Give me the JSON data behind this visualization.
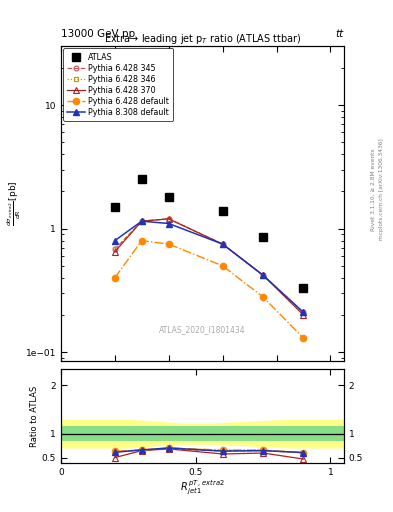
{
  "title_top": "13000 GeV pp",
  "title_right": "tt",
  "plot_title": "Extra→ leading jet p$_T$ ratio (ATLAS ttbar)",
  "watermark": "ATLAS_2020_I1801434",
  "ylabel_main": "d$\\frac{d\\sigma_{extra2}}{dR}$ [pb]",
  "ylabel_ratio": "Ratio to ATLAS",
  "right_label1": "Rivet 3.1.10, ≥ 2.8M events",
  "right_label2": "mcplots.cern.ch [arXiv:1306.3436]",
  "xlim": [
    0,
    1.05
  ],
  "ylim_main": [
    0.085,
    30
  ],
  "ylim_ratio": [
    0.38,
    2.35
  ],
  "x_data": [
    0.2,
    0.3,
    0.4,
    0.6,
    0.75,
    0.9
  ],
  "atlas_y": [
    1.5,
    2.5,
    1.8,
    1.4,
    0.85,
    0.33
  ],
  "py6_345_y": [
    0.68,
    1.15,
    1.2,
    0.75,
    0.42,
    0.21
  ],
  "py6_346_y": [
    0.68,
    1.15,
    1.2,
    0.75,
    0.42,
    0.21
  ],
  "py6_370_y": [
    0.65,
    1.15,
    1.2,
    0.75,
    0.42,
    0.2
  ],
  "py6_def_y": [
    0.4,
    0.8,
    0.75,
    0.5,
    0.28,
    0.13
  ],
  "py8_def_y": [
    0.8,
    1.15,
    1.1,
    0.75,
    0.42,
    0.21
  ],
  "ratio_py6_345": [
    0.63,
    0.655,
    0.685,
    0.635,
    0.645,
    0.6
  ],
  "ratio_py6_346": [
    0.63,
    0.655,
    0.7,
    0.655,
    0.655,
    0.6
  ],
  "ratio_py6_370": [
    0.5,
    0.645,
    0.68,
    0.575,
    0.595,
    0.47
  ],
  "ratio_py6_def": [
    0.63,
    0.655,
    0.7,
    0.655,
    0.655,
    0.6
  ],
  "ratio_py8_def": [
    0.61,
    0.66,
    0.7,
    0.635,
    0.645,
    0.605
  ],
  "band_x": [
    0.0,
    0.25,
    0.35,
    0.45,
    0.55,
    0.7,
    0.85,
    1.05
  ],
  "band_yellow_lo": [
    0.7,
    0.7,
    0.74,
    0.78,
    0.78,
    0.74,
    0.7,
    0.7
  ],
  "band_yellow_hi": [
    1.3,
    1.3,
    1.26,
    1.22,
    1.22,
    1.26,
    1.3,
    1.3
  ],
  "band_green_lo": 0.85,
  "band_green_hi": 1.15,
  "color_py6_345": "#cc5555",
  "color_py6_346": "#bb9900",
  "color_py6_370": "#aa2222",
  "color_py6_def": "#ff8800",
  "color_py8_def": "#2233bb",
  "color_atlas": "black"
}
